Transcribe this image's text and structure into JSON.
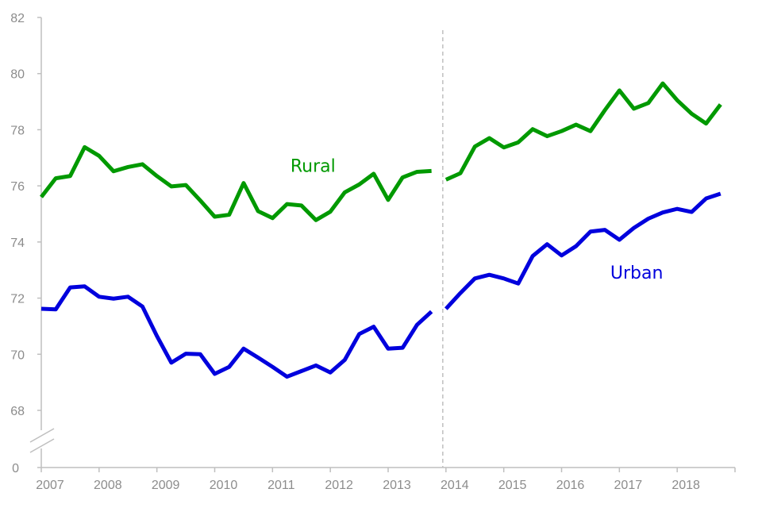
{
  "chart_data": {
    "type": "line",
    "title": "",
    "xlabel": "",
    "ylabel": "",
    "ylim": [
      68,
      82
    ],
    "y_ticks": [
      "68",
      "70",
      "72",
      "74",
      "76",
      "78",
      "80",
      "82"
    ],
    "y_zero_label": "0",
    "x_ticks": [
      "2007",
      "2008",
      "2009",
      "2010",
      "2011",
      "2012",
      "2013",
      "2014",
      "2015",
      "2016",
      "2017",
      "2018"
    ],
    "xlim": [
      2007.0,
      2019.0
    ],
    "axis_break": true,
    "grid": false,
    "legend": "none",
    "divider_at": 2014.0,
    "series": [
      {
        "name": "Rural",
        "color": "#009900",
        "segments": [
          {
            "x": [
              2007.0,
              2007.25,
              2007.5,
              2007.75,
              2008.0,
              2008.25,
              2008.5,
              2008.75,
              2009.0,
              2009.25,
              2009.5,
              2009.75,
              2010.0,
              2010.25,
              2010.5,
              2010.75,
              2011.0,
              2011.25,
              2011.5,
              2011.75,
              2012.0,
              2012.25,
              2012.5,
              2012.75,
              2013.0,
              2013.25,
              2013.5,
              2013.75
            ],
            "values": [
              75.6,
              76.27,
              76.35,
              77.38,
              77.07,
              76.52,
              76.67,
              76.77,
              76.35,
              75.98,
              76.03,
              75.48,
              74.9,
              74.97,
              76.1,
              75.1,
              74.85,
              75.35,
              75.3,
              74.78,
              75.08,
              75.77,
              76.05,
              76.43,
              75.5,
              76.3,
              76.5,
              76.53
            ]
          },
          {
            "x": [
              2014.0,
              2014.25,
              2014.5,
              2014.75,
              2015.0,
              2015.25,
              2015.5,
              2015.75,
              2016.0,
              2016.25,
              2016.5,
              2016.75,
              2017.0,
              2017.25,
              2017.5,
              2017.75,
              2018.0,
              2018.25,
              2018.5,
              2018.75
            ],
            "values": [
              76.22,
              76.45,
              77.4,
              77.7,
              77.37,
              77.55,
              78.02,
              77.77,
              77.95,
              78.18,
              77.95,
              78.7,
              79.4,
              78.75,
              78.95,
              79.65,
              79.05,
              78.57,
              78.22,
              78.9
            ]
          }
        ]
      },
      {
        "name": "Urban",
        "color": "#0000dd",
        "segments": [
          {
            "x": [
              2007.0,
              2007.25,
              2007.5,
              2007.75,
              2008.0,
              2008.25,
              2008.5,
              2008.75,
              2009.0,
              2009.25,
              2009.5,
              2009.75,
              2010.0,
              2010.25,
              2010.5,
              2010.75,
              2011.0,
              2011.25,
              2011.5,
              2011.75,
              2012.0,
              2012.25,
              2012.5,
              2012.75,
              2013.0,
              2013.25,
              2013.5,
              2013.75
            ],
            "values": [
              71.62,
              71.6,
              72.38,
              72.42,
              72.05,
              71.98,
              72.05,
              71.7,
              70.65,
              69.7,
              70.02,
              70.0,
              69.3,
              69.55,
              70.2,
              69.88,
              69.55,
              69.2,
              69.4,
              69.6,
              69.35,
              69.8,
              70.72,
              70.98,
              70.2,
              70.23,
              71.05,
              71.52
            ]
          },
          {
            "x": [
              2014.0,
              2014.25,
              2014.5,
              2014.75,
              2015.0,
              2015.25,
              2015.5,
              2015.75,
              2016.0,
              2016.25,
              2016.5,
              2016.75,
              2017.0,
              2017.25,
              2017.5,
              2017.75,
              2018.0,
              2018.25,
              2018.5,
              2018.75
            ],
            "values": [
              71.62,
              72.18,
              72.7,
              72.83,
              72.7,
              72.52,
              73.5,
              73.92,
              73.52,
              73.85,
              74.37,
              74.43,
              74.08,
              74.5,
              74.83,
              75.05,
              75.18,
              75.07,
              75.55,
              75.72
            ]
          }
        ]
      }
    ],
    "annotations": [
      {
        "text": "Rural",
        "series": "Rural",
        "x": 2011.7,
        "y": 76.5
      },
      {
        "text": "Urban",
        "series": "Urban",
        "x": 2017.3,
        "y": 72.7
      }
    ]
  }
}
